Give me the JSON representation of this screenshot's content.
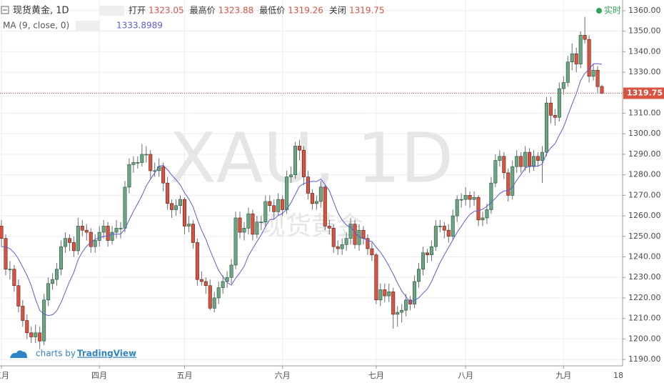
{
  "chart_data": {
    "type": "candlestick",
    "title": "现货黄金, 1D",
    "watermark": "XAU, 1D",
    "watermark_sub": "现货黄金",
    "status": "实时",
    "ohlc_labels": [
      "打开",
      "最高价",
      "最低价",
      "关闭"
    ],
    "categories": [
      "三月",
      null,
      null,
      null,
      null,
      null,
      null,
      null,
      null,
      null,
      null,
      null,
      null,
      null,
      null,
      null,
      null,
      null,
      null,
      null,
      null,
      null,
      null,
      "四月",
      null,
      null,
      null,
      null,
      null,
      null,
      null,
      null,
      null,
      null,
      null,
      null,
      null,
      null,
      null,
      null,
      null,
      null,
      null,
      "五月",
      null,
      null,
      null,
      null,
      null,
      null,
      null,
      null,
      null,
      null,
      null,
      null,
      null,
      null,
      null,
      null,
      null,
      null,
      null,
      null,
      null,
      null,
      "六月",
      null,
      null,
      null,
      null,
      null,
      null,
      null,
      null,
      null,
      null,
      null,
      null,
      null,
      null,
      null,
      null,
      null,
      null,
      null,
      null,
      null,
      "七月",
      null,
      null,
      null,
      null,
      null,
      null,
      null,
      null,
      null,
      null,
      null,
      null,
      null,
      null,
      null,
      null,
      null,
      null,
      null,
      null,
      "八月",
      null,
      null,
      null,
      null,
      null,
      null,
      null,
      null,
      null,
      null,
      null,
      null,
      null,
      null,
      null,
      null,
      null,
      null,
      null,
      null,
      null,
      null,
      "九月",
      null,
      null,
      null,
      null,
      null,
      null,
      null,
      null,
      null
    ],
    "axis_end_label": "18",
    "up_color": "#6ba583",
    "down_color": "#d75442",
    "ohlc": [
      [
        1255,
        1258,
        1245,
        1249
      ],
      [
        1249,
        1251,
        1231,
        1234
      ],
      [
        1234,
        1238,
        1229,
        1234
      ],
      [
        1234,
        1236,
        1223,
        1226
      ],
      [
        1226,
        1229,
        1213,
        1216
      ],
      [
        1216,
        1219,
        1206,
        1209
      ],
      [
        1209,
        1212,
        1200,
        1203
      ],
      [
        1203,
        1206,
        1198,
        1201
      ],
      [
        1201,
        1207,
        1198,
        1203
      ],
      [
        1203,
        1206,
        1195,
        1199
      ],
      [
        1199,
        1222,
        1197,
        1219
      ],
      [
        1219,
        1230,
        1216,
        1227
      ],
      [
        1227,
        1232,
        1224,
        1229
      ],
      [
        1229,
        1237,
        1226,
        1234
      ],
      [
        1234,
        1248,
        1231,
        1245
      ],
      [
        1245,
        1252,
        1242,
        1249
      ],
      [
        1249,
        1251,
        1243,
        1247
      ],
      [
        1247,
        1250,
        1240,
        1243
      ],
      [
        1243,
        1259,
        1241,
        1255
      ],
      [
        1255,
        1258,
        1250,
        1253
      ],
      [
        1253,
        1256,
        1248,
        1252
      ],
      [
        1252,
        1254,
        1242,
        1245
      ],
      [
        1245,
        1251,
        1242,
        1248
      ],
      [
        1248,
        1255,
        1245,
        1252
      ],
      [
        1252,
        1258,
        1249,
        1255
      ],
      [
        1255,
        1257,
        1245,
        1248
      ],
      [
        1248,
        1255,
        1246,
        1252
      ],
      [
        1252,
        1258,
        1249,
        1254
      ],
      [
        1254,
        1257,
        1249,
        1254
      ],
      [
        1254,
        1277,
        1252,
        1274
      ],
      [
        1274,
        1288,
        1271,
        1285
      ],
      [
        1285,
        1289,
        1281,
        1286
      ],
      [
        1286,
        1289,
        1283,
        1286
      ],
      [
        1286,
        1295,
        1284,
        1290
      ],
      [
        1290,
        1294,
        1286,
        1290
      ],
      [
        1290,
        1292,
        1278,
        1282
      ],
      [
        1282,
        1286,
        1279,
        1282
      ],
      [
        1282,
        1288,
        1279,
        1284
      ],
      [
        1284,
        1286,
        1272,
        1276
      ],
      [
        1276,
        1279,
        1263,
        1266
      ],
      [
        1266,
        1268,
        1259,
        1263
      ],
      [
        1263,
        1268,
        1260,
        1265
      ],
      [
        1265,
        1270,
        1261,
        1268
      ],
      [
        1268,
        1269,
        1251,
        1255
      ],
      [
        1255,
        1260,
        1252,
        1256
      ],
      [
        1256,
        1258,
        1244,
        1247
      ],
      [
        1247,
        1249,
        1226,
        1229
      ],
      [
        1229,
        1233,
        1226,
        1228
      ],
      [
        1228,
        1230,
        1222,
        1226
      ],
      [
        1226,
        1229,
        1214,
        1215
      ],
      [
        1215,
        1223,
        1213,
        1220
      ],
      [
        1220,
        1228,
        1217,
        1225
      ],
      [
        1225,
        1231,
        1222,
        1228
      ],
      [
        1228,
        1233,
        1225,
        1230
      ],
      [
        1230,
        1239,
        1227,
        1236
      ],
      [
        1236,
        1262,
        1234,
        1259
      ],
      [
        1259,
        1262,
        1249,
        1252
      ],
      [
        1252,
        1257,
        1248,
        1254
      ],
      [
        1254,
        1264,
        1251,
        1261
      ],
      [
        1261,
        1263,
        1248,
        1251
      ],
      [
        1251,
        1260,
        1249,
        1257
      ],
      [
        1257,
        1260,
        1253,
        1257
      ],
      [
        1257,
        1270,
        1255,
        1267
      ],
      [
        1267,
        1270,
        1262,
        1265
      ],
      [
        1265,
        1268,
        1258,
        1262
      ],
      [
        1262,
        1271,
        1260,
        1268
      ],
      [
        1268,
        1270,
        1260,
        1263
      ],
      [
        1263,
        1282,
        1261,
        1279
      ],
      [
        1279,
        1284,
        1276,
        1280
      ],
      [
        1280,
        1296,
        1278,
        1294
      ],
      [
        1294,
        1297,
        1287,
        1292
      ],
      [
        1292,
        1294,
        1275,
        1279
      ],
      [
        1279,
        1282,
        1268,
        1271
      ],
      [
        1271,
        1273,
        1263,
        1266
      ],
      [
        1266,
        1270,
        1263,
        1267
      ],
      [
        1267,
        1277,
        1264,
        1274
      ],
      [
        1274,
        1275,
        1253,
        1255
      ],
      [
        1255,
        1258,
        1251,
        1254
      ],
      [
        1254,
        1256,
        1242,
        1245
      ],
      [
        1245,
        1248,
        1241,
        1244
      ],
      [
        1244,
        1249,
        1241,
        1246
      ],
      [
        1246,
        1252,
        1243,
        1249
      ],
      [
        1249,
        1259,
        1246,
        1256
      ],
      [
        1256,
        1258,
        1244,
        1246
      ],
      [
        1246,
        1256,
        1243,
        1253
      ],
      [
        1253,
        1255,
        1246,
        1249
      ],
      [
        1249,
        1251,
        1241,
        1244
      ],
      [
        1244,
        1247,
        1238,
        1241
      ],
      [
        1241,
        1242,
        1217,
        1219
      ],
      [
        1219,
        1227,
        1216,
        1224
      ],
      [
        1224,
        1227,
        1218,
        1221
      ],
      [
        1221,
        1227,
        1218,
        1223
      ],
      [
        1223,
        1225,
        1205,
        1212
      ],
      [
        1212,
        1216,
        1206,
        1213
      ],
      [
        1213,
        1217,
        1208,
        1214
      ],
      [
        1214,
        1222,
        1211,
        1219
      ],
      [
        1219,
        1221,
        1214,
        1217
      ],
      [
        1217,
        1231,
        1215,
        1228
      ],
      [
        1228,
        1237,
        1225,
        1234
      ],
      [
        1234,
        1245,
        1231,
        1242
      ],
      [
        1242,
        1244,
        1237,
        1241
      ],
      [
        1241,
        1248,
        1238,
        1245
      ],
      [
        1245,
        1258,
        1243,
        1255
      ],
      [
        1255,
        1258,
        1252,
        1255
      ],
      [
        1255,
        1257,
        1249,
        1253
      ],
      [
        1253,
        1256,
        1247,
        1250
      ],
      [
        1250,
        1263,
        1248,
        1260
      ],
      [
        1260,
        1270,
        1257,
        1268
      ],
      [
        1268,
        1271,
        1264,
        1268
      ],
      [
        1268,
        1274,
        1265,
        1270
      ],
      [
        1270,
        1272,
        1264,
        1268
      ],
      [
        1268,
        1272,
        1265,
        1269
      ],
      [
        1269,
        1270,
        1255,
        1258
      ],
      [
        1258,
        1262,
        1255,
        1259
      ],
      [
        1259,
        1266,
        1256,
        1263
      ],
      [
        1263,
        1279,
        1261,
        1276
      ],
      [
        1276,
        1290,
        1274,
        1287
      ],
      [
        1287,
        1292,
        1284,
        1289
      ],
      [
        1289,
        1291,
        1278,
        1281
      ],
      [
        1281,
        1283,
        1267,
        1270
      ],
      [
        1270,
        1287,
        1268,
        1284
      ],
      [
        1284,
        1292,
        1281,
        1289
      ],
      [
        1289,
        1291,
        1281,
        1284
      ],
      [
        1284,
        1294,
        1282,
        1291
      ],
      [
        1291,
        1293,
        1281,
        1284
      ],
      [
        1284,
        1292,
        1282,
        1289
      ],
      [
        1289,
        1291,
        1284,
        1287
      ],
      [
        1287,
        1294,
        1276,
        1291
      ],
      [
        1291,
        1318,
        1289,
        1315
      ],
      [
        1315,
        1318,
        1305,
        1309
      ],
      [
        1309,
        1312,
        1304,
        1308
      ],
      [
        1308,
        1325,
        1306,
        1322
      ],
      [
        1322,
        1328,
        1319,
        1325
      ],
      [
        1325,
        1338,
        1323,
        1335
      ],
      [
        1335,
        1344,
        1331,
        1339
      ],
      [
        1339,
        1342,
        1330,
        1334
      ],
      [
        1334,
        1350,
        1332,
        1348
      ],
      [
        1348,
        1357,
        1344,
        1346
      ],
      [
        1346,
        1348,
        1325,
        1328
      ],
      [
        1328,
        1334,
        1326,
        1331
      ],
      [
        1331,
        1333,
        1320,
        1323
      ],
      [
        1323.05,
        1323.88,
        1319.26,
        1319.75
      ]
    ],
    "ma": {
      "name": "MA (9, close, 0)",
      "color": "#5c5cd6",
      "values": [
        1245,
        1245,
        1244,
        1242,
        1239,
        1235,
        1231,
        1226,
        1219.4,
        1213.9,
        1212.2,
        1211.4,
        1211.8,
        1213.8,
        1217.8,
        1222.9,
        1228,
        1232.4,
        1238.7,
        1242.4,
        1245.2,
        1247,
        1248.6,
        1249.3,
        1250,
        1250.1,
        1251.1,
        1251,
        1251.1,
        1253.6,
        1258,
        1262.2,
        1266,
        1269.9,
        1274.6,
        1277.9,
        1281,
        1284.3,
        1284.6,
        1282.5,
        1279.9,
        1277.6,
        1275.1,
        1271.2,
        1268.3,
        1264.4,
        1258.3,
        1253,
        1248.6,
        1243.2,
        1238.2,
        1233.4,
        1230.4,
        1227.5,
        1226.3,
        1229.6,
        1232.3,
        1235.4,
        1240.5,
        1244,
        1247.5,
        1250.7,
        1254.8,
        1258.1,
        1258.4,
        1260.2,
        1261.2,
        1263.2,
        1266.4,
        1270.5,
        1274.4,
        1275.7,
        1276.4,
        1276.8,
        1276.7,
        1277.9,
        1275.2,
        1272.3,
        1266.9,
        1261.6,
        1257.9,
        1255.5,
        1254.4,
        1252,
        1249.7,
        1249,
        1247.9,
        1247.5,
        1244.7,
        1242.3,
        1239.2,
        1235.5,
        1231.7,
        1227.3,
        1223.4,
        1220.6,
        1217.9,
        1218.9,
        1220,
        1222.3,
        1224.3,
        1228,
        1232.7,
        1237.2,
        1241,
        1244.7,
        1248.2,
        1252,
        1254.9,
        1258.1,
        1260.7,
        1262.2,
        1262.6,
        1263.2,
        1264.7,
        1266.5,
        1268.6,
        1270.9,
        1272.1,
        1272.3,
        1274,
        1277.4,
        1280.2,
        1283.3,
        1284.2,
        1284.4,
        1284.2,
        1285.3,
        1290.3,
        1293.1,
        1295.2,
        1299.4,
        1303.2,
        1308.9,
        1314.4,
        1319.6,
        1326,
        1329.4,
        1331.5,
        1334.1,
        1334.2,
        1333.8989
      ]
    },
    "ylim": [
      1186.9,
      1365.2
    ],
    "yticks": [
      {
        "value": 1190,
        "label": "1190.00"
      },
      {
        "value": 1200,
        "label": "1200.00"
      },
      {
        "value": 1210,
        "label": "1210.00"
      },
      {
        "value": 1220,
        "label": "1220.00"
      },
      {
        "value": 1230,
        "label": "1230.00"
      },
      {
        "value": 1240,
        "label": "1240.00"
      },
      {
        "value": 1250,
        "label": "1250.00"
      },
      {
        "value": 1260,
        "label": "1260.00"
      },
      {
        "value": 1270,
        "label": "1270.00"
      },
      {
        "value": 1280,
        "label": "1280.00"
      },
      {
        "value": 1290,
        "label": "1290.00"
      },
      {
        "value": 1300,
        "label": "1300.00"
      },
      {
        "value": 1310,
        "label": "1310.00"
      },
      {
        "value": 1320,
        "label": "1320.00"
      },
      {
        "value": 1330,
        "label": "1330.00"
      },
      {
        "value": 1340,
        "label": "1340.00"
      },
      {
        "value": 1350,
        "label": "1350.00"
      },
      {
        "value": 1360,
        "label": "1360.00"
      }
    ],
    "grid": true,
    "last_price_line": true
  },
  "branding": {
    "prefix": "charts by",
    "name": "TradingView"
  }
}
